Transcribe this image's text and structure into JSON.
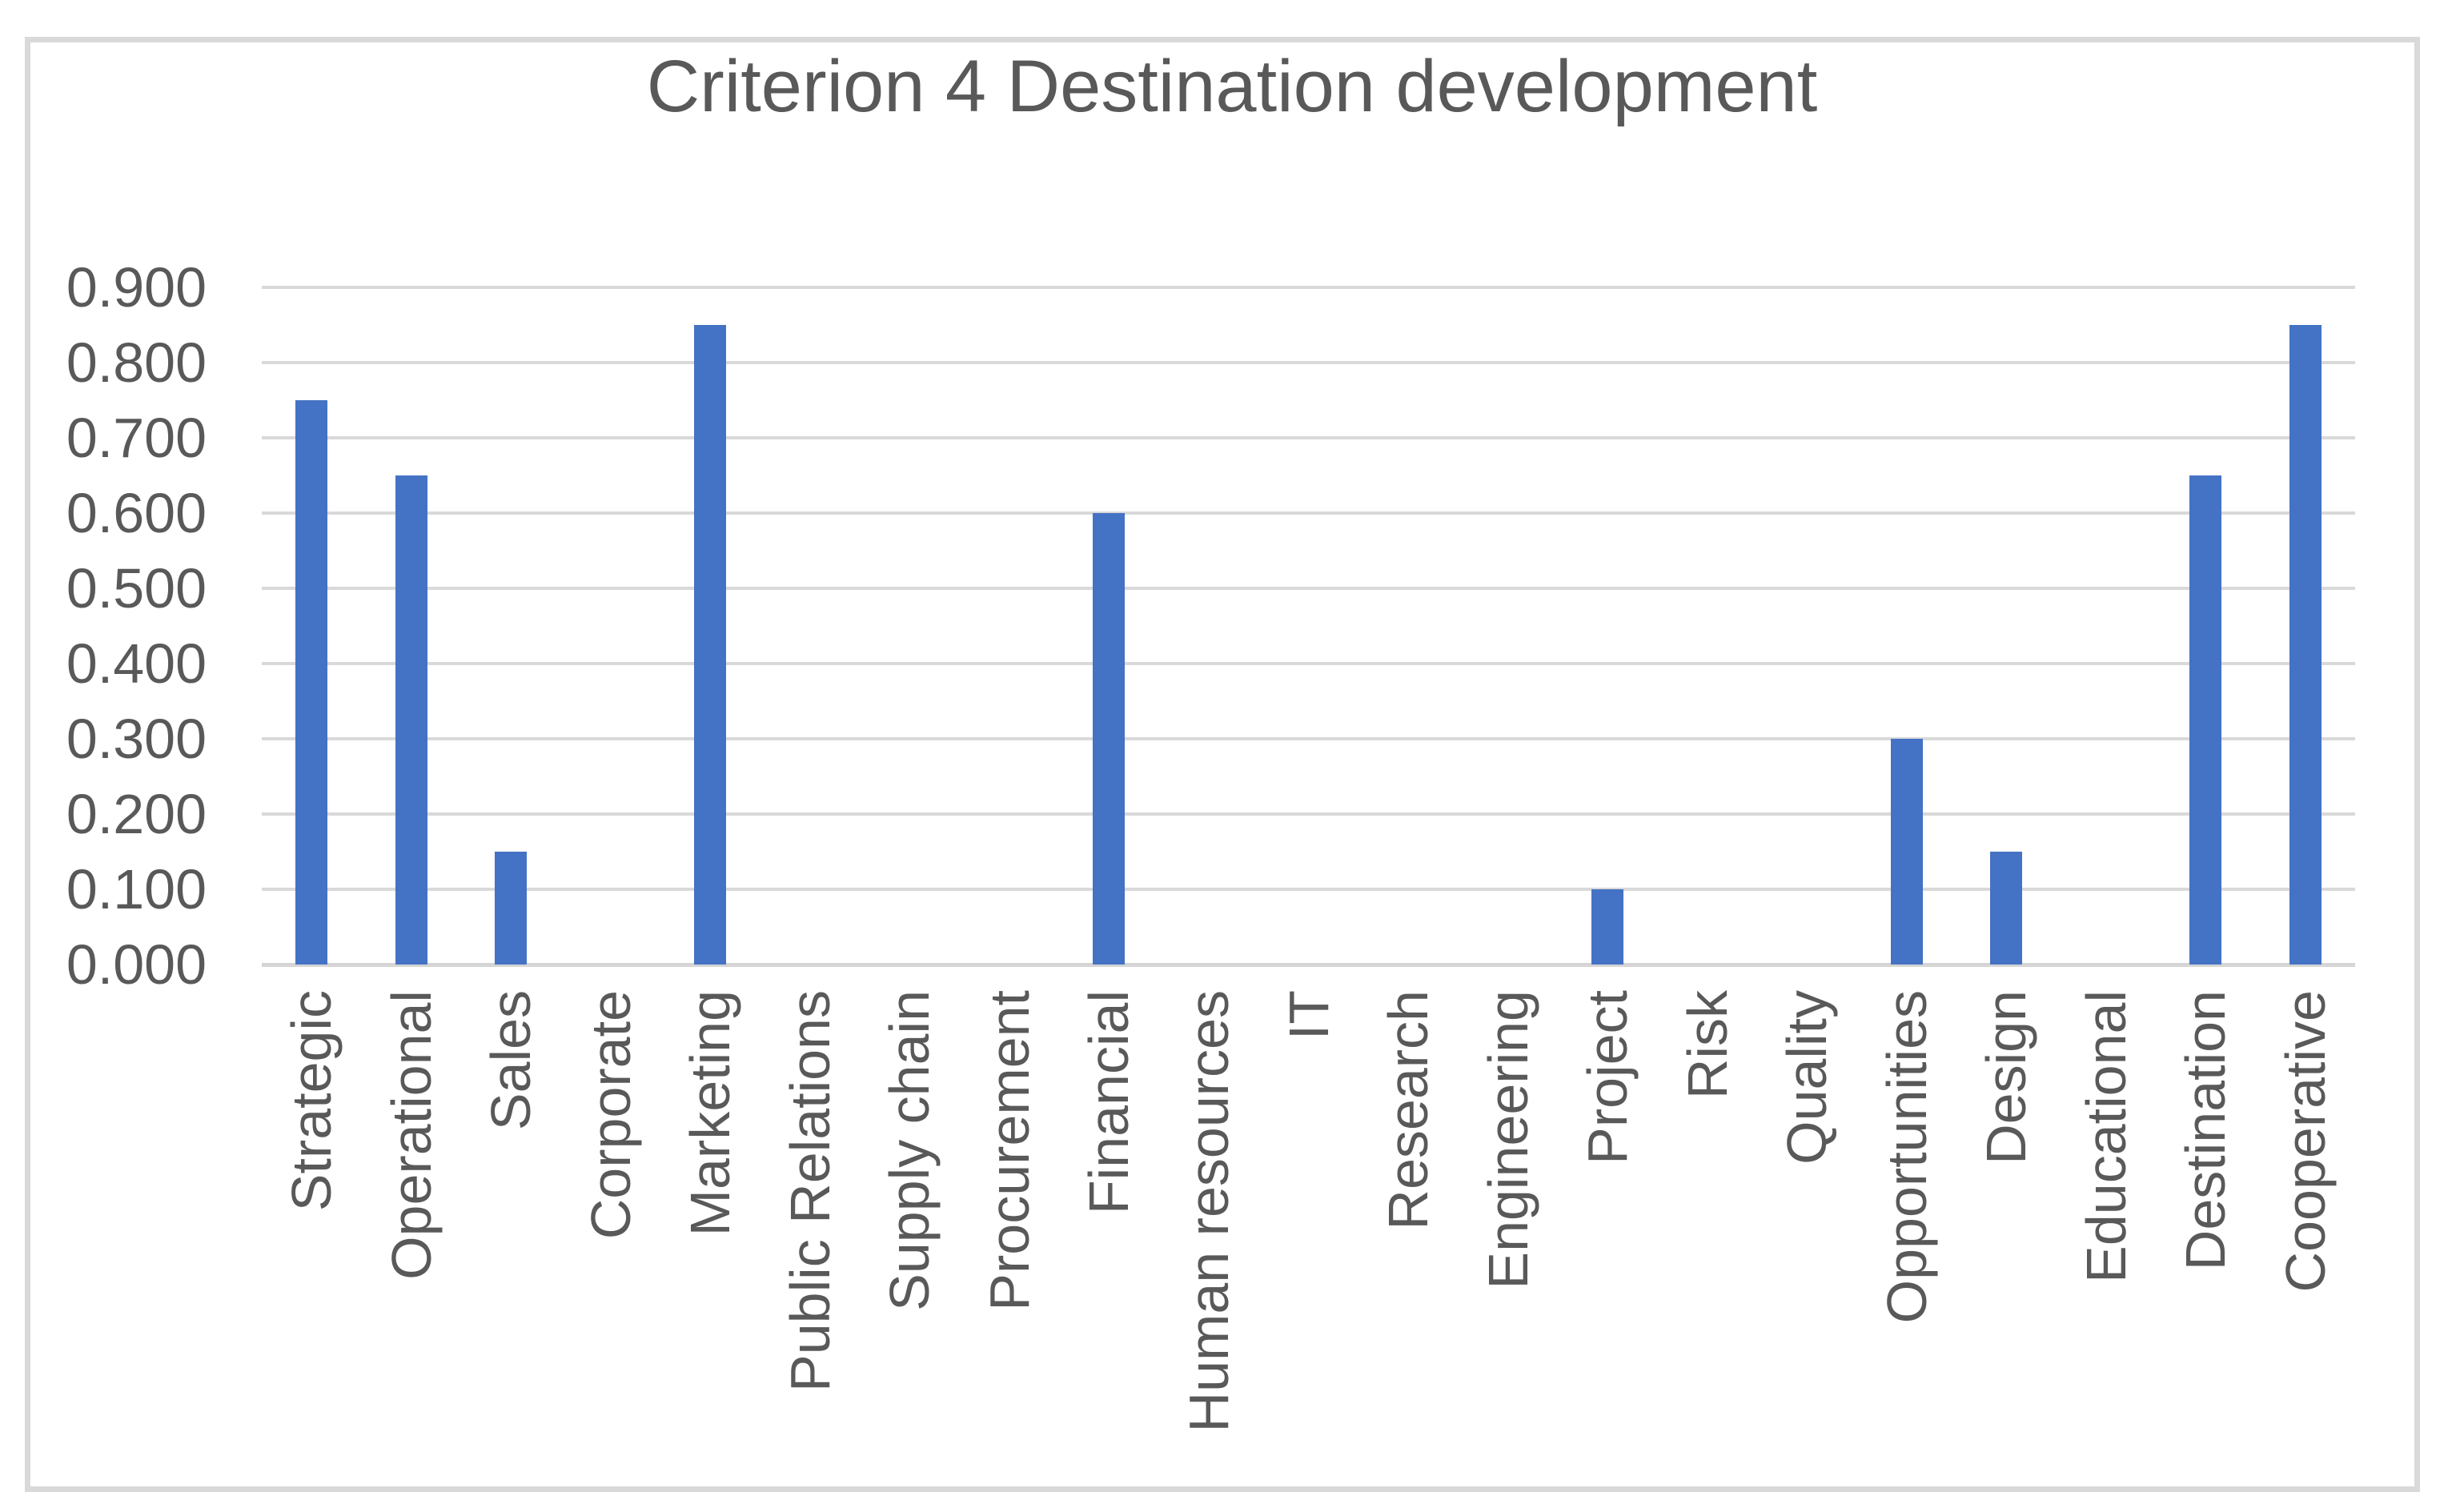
{
  "chart_data": {
    "type": "bar",
    "title": "Criterion 4 Destination development",
    "categories": [
      "Strategic",
      "Operational",
      "Sales",
      "Corporate",
      "Marketing",
      "Public Relations",
      "Supply chain",
      "Procurement",
      "Financial",
      "Human resources",
      "IT",
      "Research",
      "Engineering",
      "Project",
      "Risk",
      "Quality",
      "Opportunities",
      "Design",
      "Educational",
      "Destination",
      "Cooperative"
    ],
    "values": [
      0.75,
      0.65,
      0.15,
      0.0,
      0.85,
      0.0,
      0.0,
      0.0,
      0.6,
      0.0,
      0.0,
      0.0,
      0.0,
      0.1,
      0.0,
      0.0,
      0.3,
      0.15,
      0.0,
      0.65,
      0.85
    ],
    "xlabel": "",
    "ylabel": "",
    "ylim": [
      0,
      0.9
    ],
    "ytick_step": 0.1,
    "ytick_labels": [
      "0.000",
      "0.100",
      "0.200",
      "0.300",
      "0.400",
      "0.500",
      "0.600",
      "0.700",
      "0.800",
      "0.900"
    ],
    "grid": true,
    "legend_position": "none",
    "colors": {
      "bar": "#4472C4",
      "gridline": "#D9D9D9",
      "axis_line": "#D5D5D5",
      "text": "#595959",
      "frame_border": "#D9D9D9",
      "background": "#FFFFFF"
    }
  }
}
